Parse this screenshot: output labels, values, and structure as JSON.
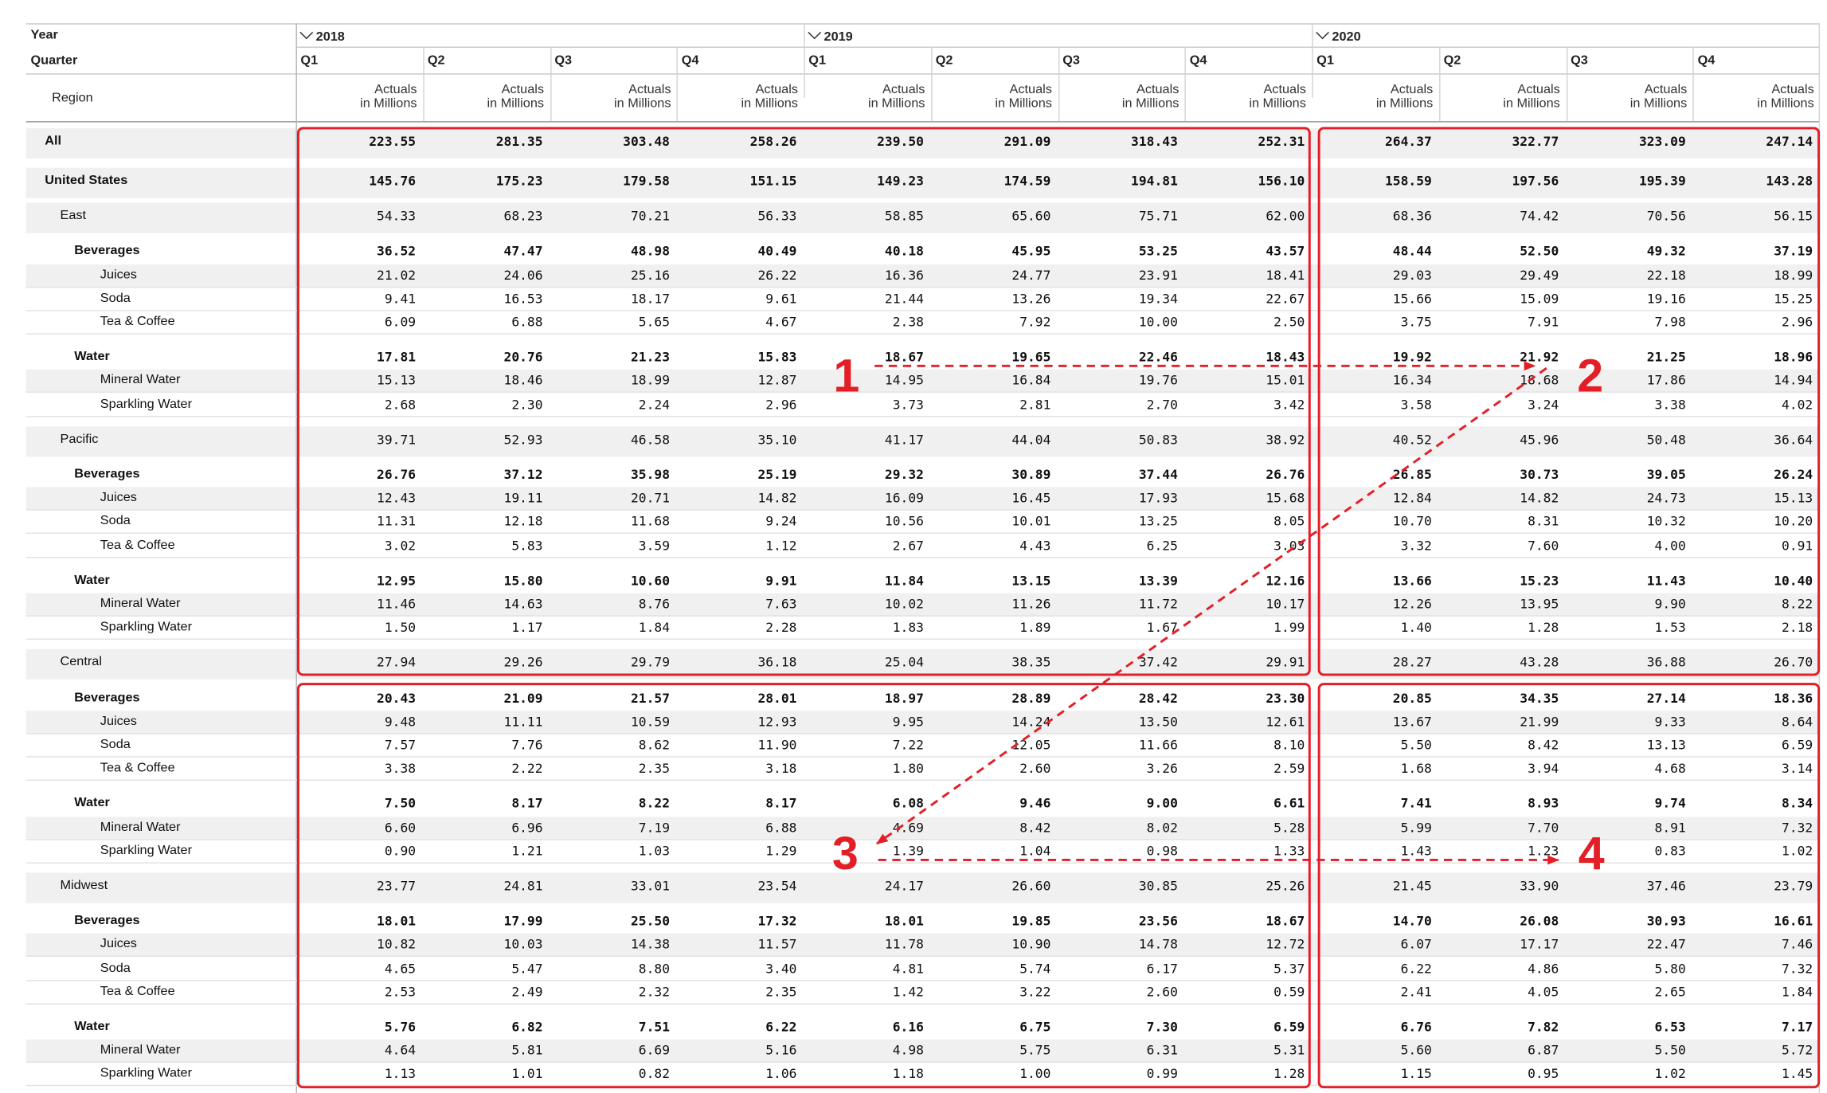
{
  "header": {
    "year_label": "Year",
    "quarter_label": "Quarter",
    "region_label": "Region",
    "years": [
      "2018",
      "2019",
      "2020"
    ],
    "quarters": [
      "Q1",
      "Q2",
      "Q3",
      "Q4"
    ],
    "measure_line1": "Actuals",
    "measure_line2": "in Millions"
  },
  "rows": [
    {
      "label": "All",
      "level": 0,
      "bold": true,
      "values": [
        "223.55",
        "281.35",
        "303.48",
        "258.26",
        "239.50",
        "291.09",
        "318.43",
        "252.31",
        "264.37",
        "322.77",
        "323.09",
        "247.14"
      ]
    },
    {
      "label": "United States",
      "level": 1,
      "bold": true,
      "values": [
        "145.76",
        "175.23",
        "179.58",
        "151.15",
        "149.23",
        "174.59",
        "194.81",
        "156.10",
        "158.59",
        "197.56",
        "195.39",
        "143.28"
      ]
    },
    {
      "label": "East",
      "level": 2,
      "bold": false,
      "values": [
        "54.33",
        "68.23",
        "70.21",
        "56.33",
        "58.85",
        "65.60",
        "75.71",
        "62.00",
        "68.36",
        "74.42",
        "70.56",
        "56.15"
      ]
    },
    {
      "label": "Beverages",
      "level": 3,
      "bold": true,
      "values": [
        "36.52",
        "47.47",
        "48.98",
        "40.49",
        "40.18",
        "45.95",
        "53.25",
        "43.57",
        "48.44",
        "52.50",
        "49.32",
        "37.19"
      ]
    },
    {
      "label": "Juices",
      "level": 4,
      "bold": false,
      "values": [
        "21.02",
        "24.06",
        "25.16",
        "26.22",
        "16.36",
        "24.77",
        "23.91",
        "18.41",
        "29.03",
        "29.49",
        "22.18",
        "18.99"
      ]
    },
    {
      "label": "Soda",
      "level": 4,
      "bold": false,
      "values": [
        "9.41",
        "16.53",
        "18.17",
        "9.61",
        "21.44",
        "13.26",
        "19.34",
        "22.67",
        "15.66",
        "15.09",
        "19.16",
        "15.25"
      ]
    },
    {
      "label": "Tea & Coffee",
      "level": 4,
      "bold": false,
      "values": [
        "6.09",
        "6.88",
        "5.65",
        "4.67",
        "2.38",
        "7.92",
        "10.00",
        "2.50",
        "3.75",
        "7.91",
        "7.98",
        "2.96"
      ]
    },
    {
      "label": "Water",
      "level": 3,
      "bold": true,
      "values": [
        "17.81",
        "20.76",
        "21.23",
        "15.83",
        "18.67",
        "19.65",
        "22.46",
        "18.43",
        "19.92",
        "21.92",
        "21.25",
        "18.96"
      ]
    },
    {
      "label": "Mineral Water",
      "level": 4,
      "bold": false,
      "values": [
        "15.13",
        "18.46",
        "18.99",
        "12.87",
        "14.95",
        "16.84",
        "19.76",
        "15.01",
        "16.34",
        "18.68",
        "17.86",
        "14.94"
      ]
    },
    {
      "label": "Sparkling Water",
      "level": 4,
      "bold": false,
      "values": [
        "2.68",
        "2.30",
        "2.24",
        "2.96",
        "3.73",
        "2.81",
        "2.70",
        "3.42",
        "3.58",
        "3.24",
        "3.38",
        "4.02"
      ]
    },
    {
      "label": "Pacific",
      "level": 2,
      "bold": false,
      "values": [
        "39.71",
        "52.93",
        "46.58",
        "35.10",
        "41.17",
        "44.04",
        "50.83",
        "38.92",
        "40.52",
        "45.96",
        "50.48",
        "36.64"
      ]
    },
    {
      "label": "Beverages",
      "level": 3,
      "bold": true,
      "values": [
        "26.76",
        "37.12",
        "35.98",
        "25.19",
        "29.32",
        "30.89",
        "37.44",
        "26.76",
        "26.85",
        "30.73",
        "39.05",
        "26.24"
      ]
    },
    {
      "label": "Juices",
      "level": 4,
      "bold": false,
      "values": [
        "12.43",
        "19.11",
        "20.71",
        "14.82",
        "16.09",
        "16.45",
        "17.93",
        "15.68",
        "12.84",
        "14.82",
        "24.73",
        "15.13"
      ]
    },
    {
      "label": "Soda",
      "level": 4,
      "bold": false,
      "values": [
        "11.31",
        "12.18",
        "11.68",
        "9.24",
        "10.56",
        "10.01",
        "13.25",
        "8.05",
        "10.70",
        "8.31",
        "10.32",
        "10.20"
      ]
    },
    {
      "label": "Tea & Coffee",
      "level": 4,
      "bold": false,
      "values": [
        "3.02",
        "5.83",
        "3.59",
        "1.12",
        "2.67",
        "4.43",
        "6.25",
        "3.03",
        "3.32",
        "7.60",
        "4.00",
        "0.91"
      ]
    },
    {
      "label": "Water",
      "level": 3,
      "bold": true,
      "values": [
        "12.95",
        "15.80",
        "10.60",
        "9.91",
        "11.84",
        "13.15",
        "13.39",
        "12.16",
        "13.66",
        "15.23",
        "11.43",
        "10.40"
      ]
    },
    {
      "label": "Mineral Water",
      "level": 4,
      "bold": false,
      "values": [
        "11.46",
        "14.63",
        "8.76",
        "7.63",
        "10.02",
        "11.26",
        "11.72",
        "10.17",
        "12.26",
        "13.95",
        "9.90",
        "8.22"
      ]
    },
    {
      "label": "Sparkling Water",
      "level": 4,
      "bold": false,
      "values": [
        "1.50",
        "1.17",
        "1.84",
        "2.28",
        "1.83",
        "1.89",
        "1.67",
        "1.99",
        "1.40",
        "1.28",
        "1.53",
        "2.18"
      ]
    },
    {
      "label": "Central",
      "level": 2,
      "bold": false,
      "values": [
        "27.94",
        "29.26",
        "29.79",
        "36.18",
        "25.04",
        "38.35",
        "37.42",
        "29.91",
        "28.27",
        "43.28",
        "36.88",
        "26.70"
      ]
    },
    {
      "label": "Beverages",
      "level": 3,
      "bold": true,
      "values": [
        "20.43",
        "21.09",
        "21.57",
        "28.01",
        "18.97",
        "28.89",
        "28.42",
        "23.30",
        "20.85",
        "34.35",
        "27.14",
        "18.36"
      ]
    },
    {
      "label": "Juices",
      "level": 4,
      "bold": false,
      "values": [
        "9.48",
        "11.11",
        "10.59",
        "12.93",
        "9.95",
        "14.24",
        "13.50",
        "12.61",
        "13.67",
        "21.99",
        "9.33",
        "8.64"
      ]
    },
    {
      "label": "Soda",
      "level": 4,
      "bold": false,
      "values": [
        "7.57",
        "7.76",
        "8.62",
        "11.90",
        "7.22",
        "12.05",
        "11.66",
        "8.10",
        "5.50",
        "8.42",
        "13.13",
        "6.59"
      ]
    },
    {
      "label": "Tea & Coffee",
      "level": 4,
      "bold": false,
      "values": [
        "3.38",
        "2.22",
        "2.35",
        "3.18",
        "1.80",
        "2.60",
        "3.26",
        "2.59",
        "1.68",
        "3.94",
        "4.68",
        "3.14"
      ]
    },
    {
      "label": "Water",
      "level": 3,
      "bold": true,
      "values": [
        "7.50",
        "8.17",
        "8.22",
        "8.17",
        "6.08",
        "9.46",
        "9.00",
        "6.61",
        "7.41",
        "8.93",
        "9.74",
        "8.34"
      ]
    },
    {
      "label": "Mineral Water",
      "level": 4,
      "bold": false,
      "values": [
        "6.60",
        "6.96",
        "7.19",
        "6.88",
        "4.69",
        "8.42",
        "8.02",
        "5.28",
        "5.99",
        "7.70",
        "8.91",
        "7.32"
      ]
    },
    {
      "label": "Sparkling Water",
      "level": 4,
      "bold": false,
      "values": [
        "0.90",
        "1.21",
        "1.03",
        "1.29",
        "1.39",
        "1.04",
        "0.98",
        "1.33",
        "1.43",
        "1.23",
        "0.83",
        "1.02"
      ]
    },
    {
      "label": "Midwest",
      "level": 2,
      "bold": false,
      "values": [
        "23.77",
        "24.81",
        "33.01",
        "23.54",
        "24.17",
        "26.60",
        "30.85",
        "25.26",
        "21.45",
        "33.90",
        "37.46",
        "23.79"
      ]
    },
    {
      "label": "Beverages",
      "level": 3,
      "bold": true,
      "values": [
        "18.01",
        "17.99",
        "25.50",
        "17.32",
        "18.01",
        "19.85",
        "23.56",
        "18.67",
        "14.70",
        "26.08",
        "30.93",
        "16.61"
      ]
    },
    {
      "label": "Juices",
      "level": 4,
      "bold": false,
      "values": [
        "10.82",
        "10.03",
        "14.38",
        "11.57",
        "11.78",
        "10.90",
        "14.78",
        "12.72",
        "6.07",
        "17.17",
        "22.47",
        "7.46"
      ]
    },
    {
      "label": "Soda",
      "level": 4,
      "bold": false,
      "values": [
        "4.65",
        "5.47",
        "8.80",
        "3.40",
        "4.81",
        "5.74",
        "6.17",
        "5.37",
        "6.22",
        "4.86",
        "5.80",
        "7.32"
      ]
    },
    {
      "label": "Tea & Coffee",
      "level": 4,
      "bold": false,
      "values": [
        "2.53",
        "2.49",
        "2.32",
        "2.35",
        "1.42",
        "3.22",
        "2.60",
        "0.59",
        "2.41",
        "4.05",
        "2.65",
        "1.84"
      ]
    },
    {
      "label": "Water",
      "level": 3,
      "bold": true,
      "values": [
        "5.76",
        "6.82",
        "7.51",
        "6.22",
        "6.16",
        "6.75",
        "7.30",
        "6.59",
        "6.76",
        "7.82",
        "6.53",
        "7.17"
      ]
    },
    {
      "label": "Mineral Water",
      "level": 4,
      "bold": false,
      "values": [
        "4.64",
        "5.81",
        "6.69",
        "5.16",
        "4.98",
        "5.75",
        "6.31",
        "5.31",
        "5.60",
        "6.87",
        "5.50",
        "5.72"
      ]
    },
    {
      "label": "Sparkling Water",
      "level": 4,
      "bold": false,
      "values": [
        "1.13",
        "1.01",
        "0.82",
        "1.06",
        "1.18",
        "1.00",
        "0.99",
        "1.28",
        "1.15",
        "0.95",
        "1.02",
        "1.45"
      ]
    }
  ],
  "annotations": {
    "markers": [
      "1",
      "2",
      "3",
      "4"
    ],
    "color": "#e41e26"
  },
  "colors": {
    "band": "#f0f0f0",
    "grid": "#c8c8c8",
    "highlight": "#e41e26"
  }
}
